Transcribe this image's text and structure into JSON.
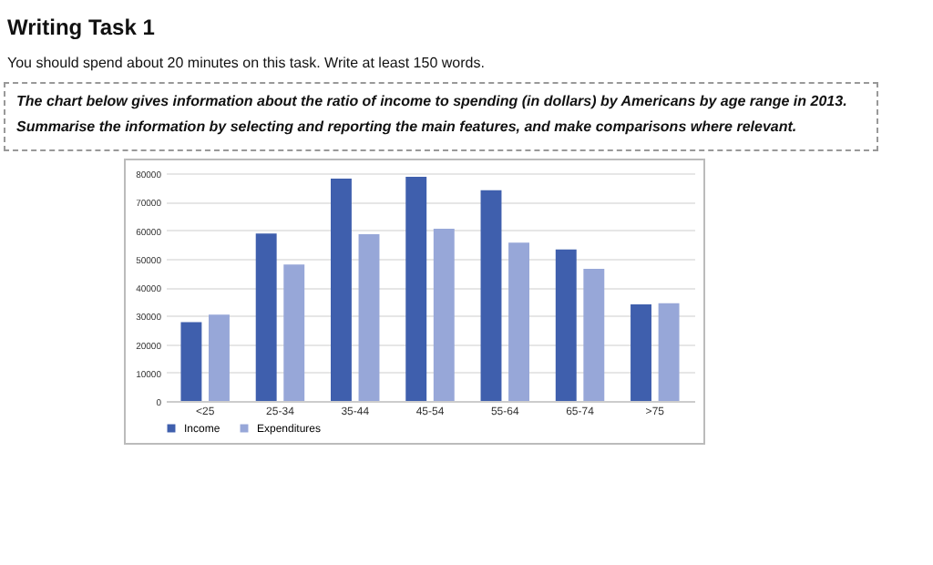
{
  "chart_data": {
    "type": "bar",
    "title": "Writing Task 1",
    "subtitle": "You should spend about 20 minutes on this task. Write at least 150 words.",
    "annotations": [
      "The chart below gives information about the ratio of income to spending (in dollars) by Americans by age range in 2013.",
      "Summarise the information by selecting and reporting the main features, and make comparisons where relevant."
    ],
    "categories": [
      "<25",
      "25-34",
      "35-44",
      "45-54",
      "55-64",
      "65-74",
      ">75"
    ],
    "series": [
      {
        "name": "Income",
        "color": "#3f5fad",
        "values": [
          27700,
          58800,
          78100,
          78700,
          74000,
          53200,
          33900
        ]
      },
      {
        "name": "Expenditures",
        "color": "#97a7d8",
        "values": [
          30300,
          47900,
          58600,
          60500,
          55600,
          46400,
          34300
        ]
      }
    ],
    "ylim": [
      0,
      80000
    ],
    "yticks": [
      0,
      10000,
      20000,
      30000,
      40000,
      50000,
      60000,
      70000,
      80000
    ],
    "grid": "y",
    "legend": "bottom"
  }
}
